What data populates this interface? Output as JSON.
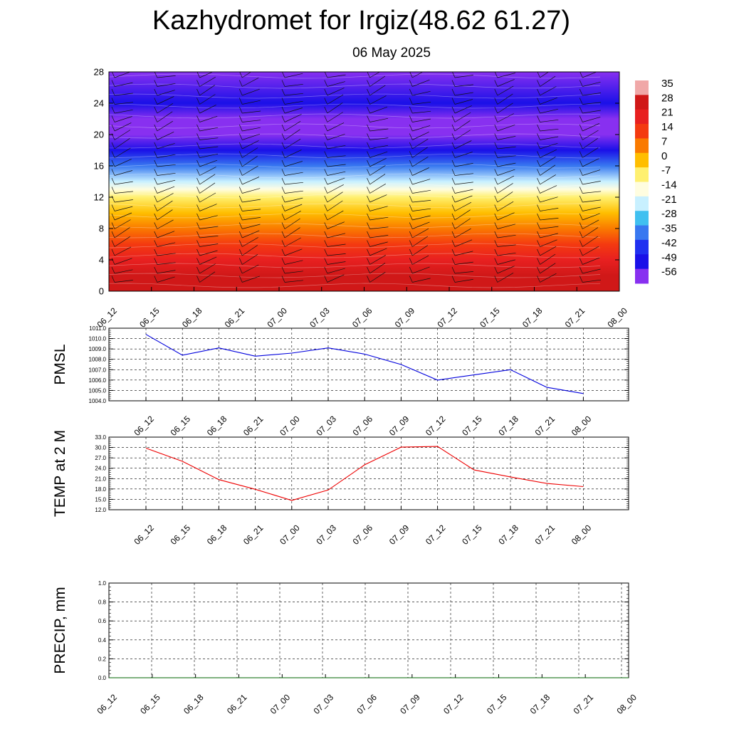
{
  "header": {
    "title": "Kazhydromet for Irgiz(48.62 61.27)",
    "subtitle": "06 May 2025"
  },
  "chart_data": [
    {
      "type": "heatmap",
      "title": "",
      "xlabel": "",
      "ylabel": "",
      "x_tick_labels": [
        "06_12",
        "06_15",
        "06_18",
        "06_21",
        "07_00",
        "07_03",
        "07_06",
        "07_09",
        "07_12",
        "07_15",
        "07_18",
        "07_21",
        "08_00"
      ],
      "y_ticks": [
        0,
        4,
        8,
        12,
        16,
        20,
        24,
        28
      ],
      "ylim": [
        0,
        28
      ],
      "colorbar": {
        "labels": [
          "35",
          "28",
          "21",
          "14",
          "7",
          "0",
          "-7",
          "-14",
          "-21",
          "-28",
          "-35",
          "-42",
          "-49",
          "-56"
        ],
        "values": [
          35,
          28,
          21,
          14,
          7,
          0,
          -7,
          -14,
          -21,
          -28,
          -35,
          -42,
          -49,
          -56
        ],
        "colors": [
          "#f0a8a8",
          "#d01818",
          "#e82020",
          "#f43a10",
          "#fa7a00",
          "#ffbe00",
          "#fff070",
          "#fffde0",
          "#c8f0ff",
          "#40c0f0",
          "#3878f0",
          "#2030f0",
          "#1a10e8",
          "#8830f0"
        ]
      },
      "temperature_profile": [
        {
          "height": 0,
          "value": 28
        },
        {
          "height": 2,
          "value": 26
        },
        {
          "height": 4,
          "value": 22
        },
        {
          "height": 6,
          "value": 16
        },
        {
          "height": 8,
          "value": 10
        },
        {
          "height": 10,
          "value": 3
        },
        {
          "height": 12,
          "value": -5
        },
        {
          "height": 13,
          "value": -12
        },
        {
          "height": 14,
          "value": -20
        },
        {
          "height": 16,
          "value": -33
        },
        {
          "height": 18,
          "value": -46
        },
        {
          "height": 20,
          "value": -54
        },
        {
          "height": 22,
          "value": -56
        },
        {
          "height": 24,
          "value": -52
        },
        {
          "height": 28,
          "value": -58
        }
      ],
      "wind_barbs": "per-time, per-level wind barbs overlaid",
      "grid": false
    },
    {
      "type": "line",
      "ylabel": "PMSL",
      "x_tick_labels": [
        "06_12",
        "06_15",
        "06_18",
        "06_21",
        "07_00",
        "07_03",
        "07_06",
        "07_09",
        "07_12",
        "07_15",
        "07_18",
        "07_21",
        "08_00"
      ],
      "y_tick_labels": [
        "1011.0",
        "1010.0",
        "1009.0",
        "1008.0",
        "1007.0",
        "1006.0",
        "1005.0",
        "1004.0"
      ],
      "ylim": [
        1004,
        1011
      ],
      "grid": true,
      "color": "#0000dd",
      "x": [
        "06_12",
        "06_15",
        "06_18",
        "06_21",
        "07_00",
        "07_03",
        "07_06",
        "07_09",
        "07_12",
        "07_15",
        "07_18",
        "07_21",
        "08_00"
      ],
      "values": [
        1010.4,
        1008.4,
        1009.1,
        1008.3,
        1008.6,
        1009.1,
        1008.5,
        1007.5,
        1006.0,
        1006.5,
        1007.0,
        1005.3,
        1004.7
      ]
    },
    {
      "type": "line",
      "ylabel": "TEMP at 2 M",
      "x_tick_labels": [
        "06_12",
        "06_15",
        "06_18",
        "06_21",
        "07_00",
        "07_03",
        "07_06",
        "07_09",
        "07_12",
        "07_15",
        "07_18",
        "07_21",
        "08_00"
      ],
      "y_tick_labels": [
        "33.0",
        "30.0",
        "27.0",
        "24.0",
        "21.0",
        "18.0",
        "15.0",
        "12.0"
      ],
      "ylim": [
        12,
        33
      ],
      "grid": true,
      "color": "#ee0000",
      "x": [
        "06_12",
        "06_15",
        "06_18",
        "06_21",
        "07_00",
        "07_03",
        "07_06",
        "07_09",
        "07_12",
        "07_15",
        "07_18",
        "07_21",
        "08_00"
      ],
      "values": [
        29.8,
        26.0,
        20.7,
        17.9,
        14.7,
        17.7,
        25.0,
        30.1,
        30.3,
        23.5,
        21.5,
        19.6,
        18.7
      ]
    },
    {
      "type": "line",
      "ylabel": "PRECIP, mm",
      "x_tick_labels": [
        "06_12",
        "06_15",
        "06_18",
        "06_21",
        "07_00",
        "07_03",
        "07_06",
        "07_09",
        "07_12",
        "07_15",
        "07_18",
        "07_21",
        "08_00"
      ],
      "y_tick_labels": [
        "1.0",
        "0.8",
        "0.6",
        "0.4",
        "0.2",
        "0.0"
      ],
      "ylim": [
        0,
        1
      ],
      "grid": true,
      "color": "#006400",
      "x": [
        "06_12",
        "06_15",
        "06_18",
        "06_21",
        "07_00",
        "07_03",
        "07_06",
        "07_09",
        "07_12",
        "07_15",
        "07_18",
        "07_21",
        "08_00"
      ],
      "values": [
        0,
        0,
        0,
        0,
        0,
        0,
        0,
        0,
        0,
        0,
        0,
        0,
        0
      ]
    }
  ]
}
